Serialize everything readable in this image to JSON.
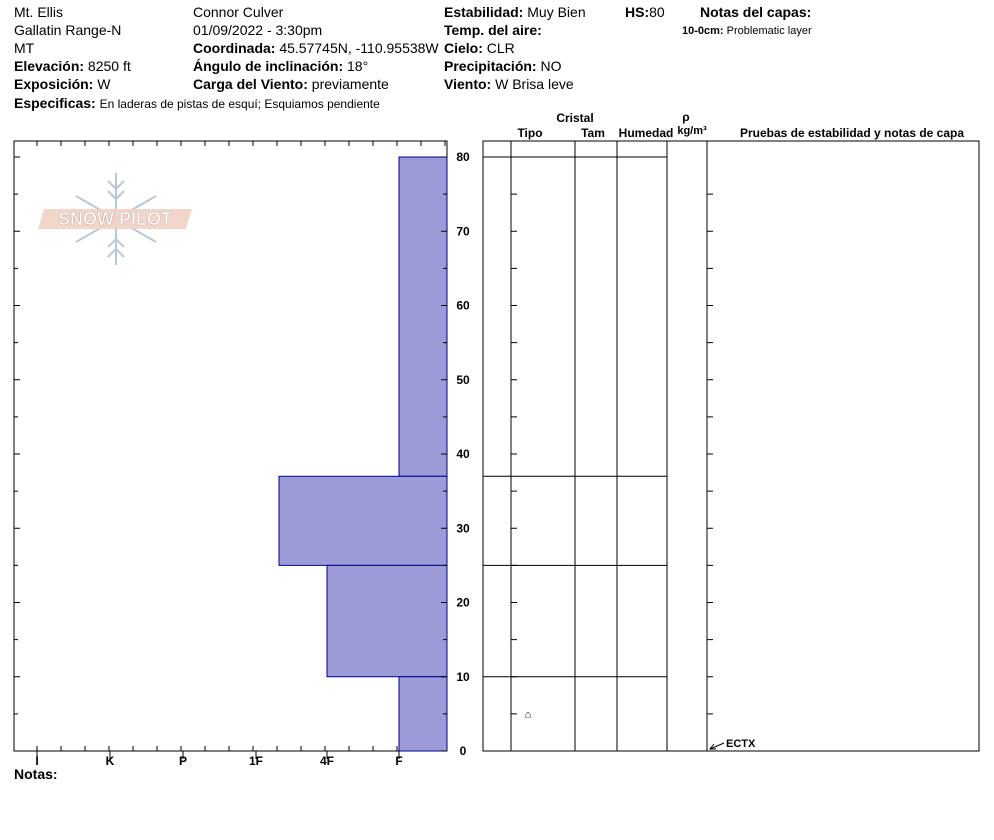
{
  "header": {
    "location": "Mt. Ellis",
    "range": "Gallatin Range-N",
    "state": "MT",
    "elevation_label": "Elevación:",
    "elevation_value": "8250 ft",
    "aspect_label": "Exposición:",
    "aspect_value": "W",
    "specifics_label": "Especificas:",
    "specifics_value": "En laderas de pistas de esquí; Esquiamos pendiente",
    "observer": "Connor Culver",
    "datetime": "01/09/2022 - 3:30pm",
    "coord_label": "Coordinada:",
    "coord_value": "45.57745N, -110.95538W",
    "slope_label": "Ángulo de inclinación:",
    "slope_value": "18°",
    "wind_load_label": "Carga del Viento:",
    "wind_load_value": "previamente",
    "stability_label": "Estabilidad:",
    "stability_value": "Muy Bien",
    "hs_label": "HS:",
    "hs_value": "80",
    "air_temp_label": "Temp. del aire:",
    "sky_label": "Cielo:",
    "sky_value": "CLR",
    "precip_label": "Precipitación:",
    "precip_value": "NO",
    "wind_label": "Viento:",
    "wind_value": "W Brisa leve",
    "layer_notes_label": "Notas del capas:",
    "layer_note_depth": "10-0cm:",
    "layer_note_text": "Problematic layer"
  },
  "logo": {
    "text": "SNOW PILOT"
  },
  "table": {
    "crystal_label": "Cristal",
    "col_type": "Tipo",
    "col_size": "Tam",
    "col_moisture": "Humedad",
    "col_density_symbol": "ρ",
    "col_density_unit": "kg/m³",
    "col_tests": "Pruebas de estabilidad y notas de capa",
    "test_result": "ECTX",
    "grain_symbol": "⌂"
  },
  "notes_label": "Notas:",
  "colors": {
    "bar_fill": "#9b9bd7",
    "bar_stroke": "#00008b"
  },
  "chart_data": {
    "type": "bar",
    "orientation": "horizontal",
    "xlabel": "",
    "ylabel": "",
    "hardness_scale": [
      "I",
      "K",
      "P",
      "1F",
      "4F",
      "F"
    ],
    "ylim": [
      0,
      80
    ],
    "y_ticks": [
      0,
      10,
      20,
      30,
      40,
      50,
      60,
      70,
      80
    ],
    "layers": [
      {
        "top": 80,
        "bottom": 37,
        "hardness": "F"
      },
      {
        "top": 37,
        "bottom": 25,
        "hardness": "1F-4F"
      },
      {
        "top": 25,
        "bottom": 10,
        "hardness": "4F"
      },
      {
        "top": 10,
        "bottom": 0,
        "hardness": "F"
      }
    ]
  }
}
